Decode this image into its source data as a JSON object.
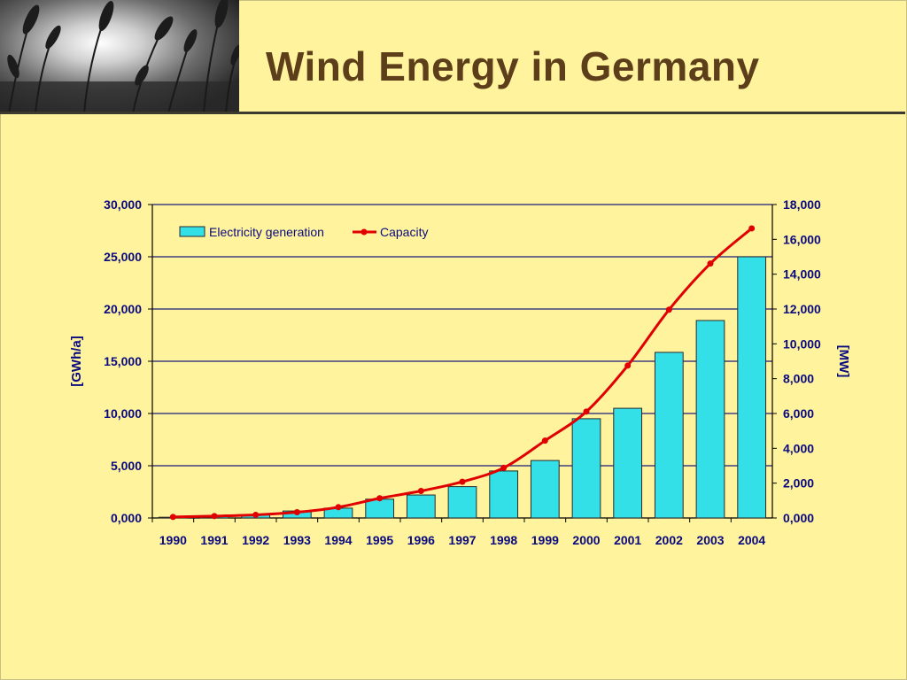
{
  "slide": {
    "title": "Wind Energy in Germany"
  },
  "colors": {
    "background": "#fff59e",
    "title": "#5c3f1a",
    "bar_fill": "#33e0e8",
    "line": "#e00000",
    "axis_label": "#0a0a80",
    "gridline": "#1a1a7a"
  },
  "chart_data": {
    "type": "bar",
    "title": "",
    "categories": [
      "1990",
      "1991",
      "1992",
      "1993",
      "1994",
      "1995",
      "1996",
      "1997",
      "1998",
      "1999",
      "2000",
      "2001",
      "2002",
      "2003",
      "2004"
    ],
    "series": [
      {
        "name": "Electricity generation",
        "type": "bar",
        "axis": "left",
        "values": [
          70,
          215,
          290,
          670,
          940,
          1800,
          2200,
          3000,
          4500,
          5500,
          9500,
          10500,
          15850,
          18900,
          25000
        ]
      },
      {
        "name": "Capacity",
        "type": "line",
        "axis": "right",
        "values": [
          60,
          110,
          180,
          330,
          620,
          1130,
          1550,
          2080,
          2880,
          4440,
          6110,
          8750,
          11960,
          14610,
          16630
        ]
      }
    ],
    "ylabel": "[GWh/a]",
    "y2label": "[MW]",
    "ylim": [
      0,
      30000
    ],
    "y2lim": [
      0,
      18000
    ],
    "yticks": [
      "0,000",
      "5,000",
      "10,000",
      "15,000",
      "20,000",
      "25,000",
      "30,000"
    ],
    "y2ticks": [
      "0,000",
      "2,000",
      "4,000",
      "6,000",
      "8,000",
      "10,000",
      "12,000",
      "14,000",
      "16,000",
      "18,000"
    ],
    "grid": true,
    "legend_position": "top-left"
  }
}
